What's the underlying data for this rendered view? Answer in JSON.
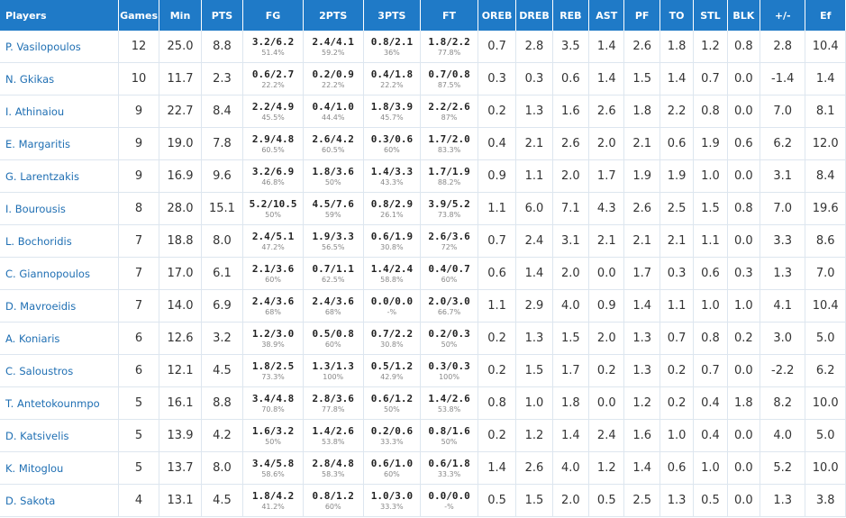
{
  "headers": [
    "Players",
    "Games",
    "Min",
    "PTS",
    "FG",
    "2PTS",
    "3PTS",
    "FT",
    "OREB",
    "DREB",
    "REB",
    "AST",
    "PF",
    "TO",
    "STL",
    "BLK",
    "+/-",
    "Ef"
  ],
  "rows": [
    {
      "name": "P. Vasilopoulos",
      "games": "12",
      "min": "25.0",
      "pts": "8.8",
      "fg": [
        "3.2/6.2",
        "51.4%"
      ],
      "p2": [
        "2.4/4.1",
        "59.2%"
      ],
      "p3": [
        "0.8/2.1",
        "36%"
      ],
      "ft": [
        "1.8/2.2",
        "77.8%"
      ],
      "oreb": "0.7",
      "dreb": "2.8",
      "reb": "3.5",
      "ast": "1.4",
      "pf": "2.6",
      "to": "1.8",
      "stl": "1.2",
      "blk": "0.8",
      "pm": "2.8",
      "ef": "10.4"
    },
    {
      "name": "N. Gkikas",
      "games": "10",
      "min": "11.7",
      "pts": "2.3",
      "fg": [
        "0.6/2.7",
        "22.2%"
      ],
      "p2": [
        "0.2/0.9",
        "22.2%"
      ],
      "p3": [
        "0.4/1.8",
        "22.2%"
      ],
      "ft": [
        "0.7/0.8",
        "87.5%"
      ],
      "oreb": "0.3",
      "dreb": "0.3",
      "reb": "0.6",
      "ast": "1.4",
      "pf": "1.5",
      "to": "1.4",
      "stl": "0.7",
      "blk": "0.0",
      "pm": "-1.4",
      "ef": "1.4"
    },
    {
      "name": "I. Athinaiou",
      "games": "9",
      "min": "22.7",
      "pts": "8.4",
      "fg": [
        "2.2/4.9",
        "45.5%"
      ],
      "p2": [
        "0.4/1.0",
        "44.4%"
      ],
      "p3": [
        "1.8/3.9",
        "45.7%"
      ],
      "ft": [
        "2.2/2.6",
        "87%"
      ],
      "oreb": "0.2",
      "dreb": "1.3",
      "reb": "1.6",
      "ast": "2.6",
      "pf": "1.8",
      "to": "2.2",
      "stl": "0.8",
      "blk": "0.0",
      "pm": "7.0",
      "ef": "8.1"
    },
    {
      "name": "E. Margaritis",
      "games": "9",
      "min": "19.0",
      "pts": "7.8",
      "fg": [
        "2.9/4.8",
        "60.5%"
      ],
      "p2": [
        "2.6/4.2",
        "60.5%"
      ],
      "p3": [
        "0.3/0.6",
        "60%"
      ],
      "ft": [
        "1.7/2.0",
        "83.3%"
      ],
      "oreb": "0.4",
      "dreb": "2.1",
      "reb": "2.6",
      "ast": "2.0",
      "pf": "2.1",
      "to": "0.6",
      "stl": "1.9",
      "blk": "0.6",
      "pm": "6.2",
      "ef": "12.0"
    },
    {
      "name": "G. Larentzakis",
      "games": "9",
      "min": "16.9",
      "pts": "9.6",
      "fg": [
        "3.2/6.9",
        "46.8%"
      ],
      "p2": [
        "1.8/3.6",
        "50%"
      ],
      "p3": [
        "1.4/3.3",
        "43.3%"
      ],
      "ft": [
        "1.7/1.9",
        "88.2%"
      ],
      "oreb": "0.9",
      "dreb": "1.1",
      "reb": "2.0",
      "ast": "1.7",
      "pf": "1.9",
      "to": "1.9",
      "stl": "1.0",
      "blk": "0.0",
      "pm": "3.1",
      "ef": "8.4"
    },
    {
      "name": "I. Bourousis",
      "games": "8",
      "min": "28.0",
      "pts": "15.1",
      "fg": [
        "5.2/10.5",
        "50%"
      ],
      "p2": [
        "4.5/7.6",
        "59%"
      ],
      "p3": [
        "0.8/2.9",
        "26.1%"
      ],
      "ft": [
        "3.9/5.2",
        "73.8%"
      ],
      "oreb": "1.1",
      "dreb": "6.0",
      "reb": "7.1",
      "ast": "4.3",
      "pf": "2.6",
      "to": "2.5",
      "stl": "1.5",
      "blk": "0.8",
      "pm": "7.0",
      "ef": "19.6"
    },
    {
      "name": "L. Bochoridis",
      "games": "7",
      "min": "18.8",
      "pts": "8.0",
      "fg": [
        "2.4/5.1",
        "47.2%"
      ],
      "p2": [
        "1.9/3.3",
        "56.5%"
      ],
      "p3": [
        "0.6/1.9",
        "30.8%"
      ],
      "ft": [
        "2.6/3.6",
        "72%"
      ],
      "oreb": "0.7",
      "dreb": "2.4",
      "reb": "3.1",
      "ast": "2.1",
      "pf": "2.1",
      "to": "2.1",
      "stl": "1.1",
      "blk": "0.0",
      "pm": "3.3",
      "ef": "8.6"
    },
    {
      "name": "C. Giannopoulos",
      "games": "7",
      "min": "17.0",
      "pts": "6.1",
      "fg": [
        "2.1/3.6",
        "60%"
      ],
      "p2": [
        "0.7/1.1",
        "62.5%"
      ],
      "p3": [
        "1.4/2.4",
        "58.8%"
      ],
      "ft": [
        "0.4/0.7",
        "60%"
      ],
      "oreb": "0.6",
      "dreb": "1.4",
      "reb": "2.0",
      "ast": "0.0",
      "pf": "1.7",
      "to": "0.3",
      "stl": "0.6",
      "blk": "0.3",
      "pm": "1.3",
      "ef": "7.0"
    },
    {
      "name": "D. Mavroeidis",
      "games": "7",
      "min": "14.0",
      "pts": "6.9",
      "fg": [
        "2.4/3.6",
        "68%"
      ],
      "p2": [
        "2.4/3.6",
        "68%"
      ],
      "p3": [
        "0.0/0.0",
        "-%"
      ],
      "ft": [
        "2.0/3.0",
        "66.7%"
      ],
      "oreb": "1.1",
      "dreb": "2.9",
      "reb": "4.0",
      "ast": "0.9",
      "pf": "1.4",
      "to": "1.1",
      "stl": "1.0",
      "blk": "1.0",
      "pm": "4.1",
      "ef": "10.4"
    },
    {
      "name": "A. Koniaris",
      "games": "6",
      "min": "12.6",
      "pts": "3.2",
      "fg": [
        "1.2/3.0",
        "38.9%"
      ],
      "p2": [
        "0.5/0.8",
        "60%"
      ],
      "p3": [
        "0.7/2.2",
        "30.8%"
      ],
      "ft": [
        "0.2/0.3",
        "50%"
      ],
      "oreb": "0.2",
      "dreb": "1.3",
      "reb": "1.5",
      "ast": "2.0",
      "pf": "1.3",
      "to": "0.7",
      "stl": "0.8",
      "blk": "0.2",
      "pm": "3.0",
      "ef": "5.0"
    },
    {
      "name": "C. Saloustros",
      "games": "6",
      "min": "12.1",
      "pts": "4.5",
      "fg": [
        "1.8/2.5",
        "73.3%"
      ],
      "p2": [
        "1.3/1.3",
        "100%"
      ],
      "p3": [
        "0.5/1.2",
        "42.9%"
      ],
      "ft": [
        "0.3/0.3",
        "100%"
      ],
      "oreb": "0.2",
      "dreb": "1.5",
      "reb": "1.7",
      "ast": "0.2",
      "pf": "1.3",
      "to": "0.2",
      "stl": "0.7",
      "blk": "0.0",
      "pm": "-2.2",
      "ef": "6.2"
    },
    {
      "name": "T. Antetokounmpo",
      "games": "5",
      "min": "16.1",
      "pts": "8.8",
      "fg": [
        "3.4/4.8",
        "70.8%"
      ],
      "p2": [
        "2.8/3.6",
        "77.8%"
      ],
      "p3": [
        "0.6/1.2",
        "50%"
      ],
      "ft": [
        "1.4/2.6",
        "53.8%"
      ],
      "oreb": "0.8",
      "dreb": "1.0",
      "reb": "1.8",
      "ast": "0.0",
      "pf": "1.2",
      "to": "0.2",
      "stl": "0.4",
      "blk": "1.8",
      "pm": "8.2",
      "ef": "10.0"
    },
    {
      "name": "D. Katsivelis",
      "games": "5",
      "min": "13.9",
      "pts": "4.2",
      "fg": [
        "1.6/3.2",
        "50%"
      ],
      "p2": [
        "1.4/2.6",
        "53.8%"
      ],
      "p3": [
        "0.2/0.6",
        "33.3%"
      ],
      "ft": [
        "0.8/1.6",
        "50%"
      ],
      "oreb": "0.2",
      "dreb": "1.2",
      "reb": "1.4",
      "ast": "2.4",
      "pf": "1.6",
      "to": "1.0",
      "stl": "0.4",
      "blk": "0.0",
      "pm": "4.0",
      "ef": "5.0"
    },
    {
      "name": "K. Mitoglou",
      "games": "5",
      "min": "13.7",
      "pts": "8.0",
      "fg": [
        "3.4/5.8",
        "58.6%"
      ],
      "p2": [
        "2.8/4.8",
        "58.3%"
      ],
      "p3": [
        "0.6/1.0",
        "60%"
      ],
      "ft": [
        "0.6/1.8",
        "33.3%"
      ],
      "oreb": "1.4",
      "dreb": "2.6",
      "reb": "4.0",
      "ast": "1.2",
      "pf": "1.4",
      "to": "0.6",
      "stl": "1.0",
      "blk": "0.0",
      "pm": "5.2",
      "ef": "10.0"
    },
    {
      "name": "D. Sakota",
      "games": "4",
      "min": "13.1",
      "pts": "4.5",
      "fg": [
        "1.8/4.2",
        "41.2%"
      ],
      "p2": [
        "0.8/1.2",
        "60%"
      ],
      "p3": [
        "1.0/3.0",
        "33.3%"
      ],
      "ft": [
        "0.0/0.0",
        "-%"
      ],
      "oreb": "0.5",
      "dreb": "1.5",
      "reb": "2.0",
      "ast": "0.5",
      "pf": "2.5",
      "to": "1.3",
      "stl": "0.5",
      "blk": "0.0",
      "pm": "1.3",
      "ef": "3.8"
    }
  ]
}
